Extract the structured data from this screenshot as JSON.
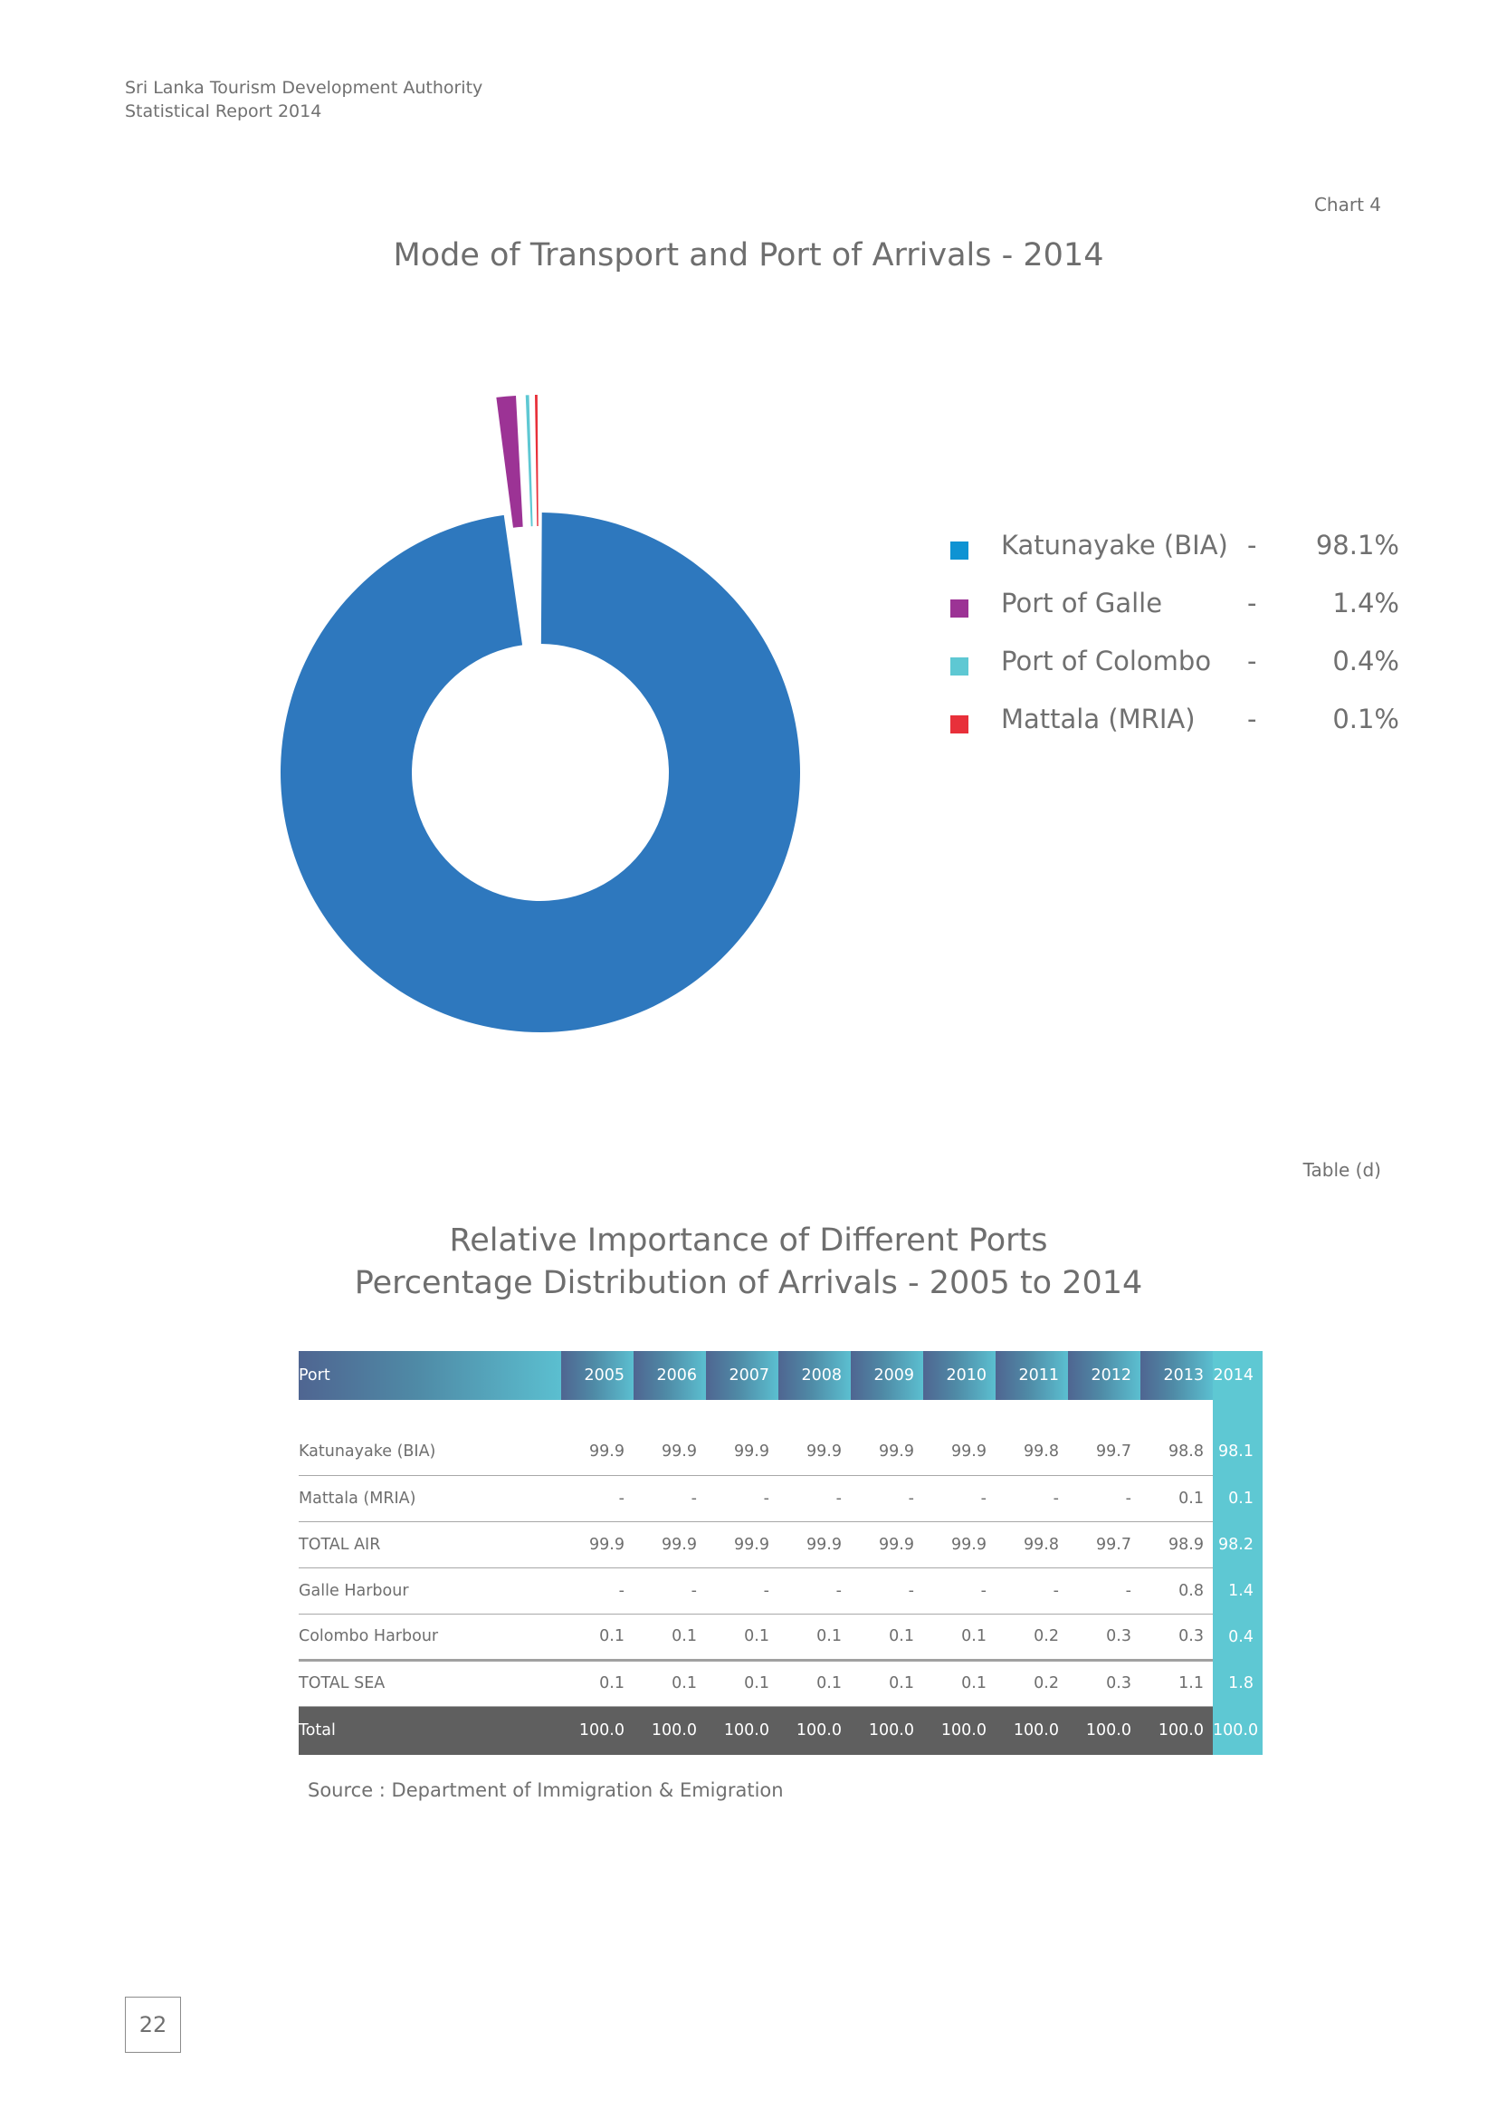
{
  "header": {
    "org": "Sri Lanka Tourism Development Authority",
    "report": "Statistical Report 2014"
  },
  "chart_label": "Chart 4",
  "chart_data": {
    "type": "pie",
    "style": "donut",
    "title": "Mode of Transport and Port of Arrivals - 2014",
    "categories": [
      "Katunayake (BIA)",
      "Port of Galle",
      "Port of Colombo",
      "Mattala (MRIA)"
    ],
    "values": [
      98.1,
      1.4,
      0.4,
      0.1
    ],
    "value_labels": [
      "98.1%",
      "1.4%",
      "0.4%",
      "0.1%"
    ],
    "colors": [
      "#2e78be",
      "#9c3395",
      "#5ec8d3",
      "#e8303a"
    ],
    "legend_colors": [
      "#0e93d3",
      "#9c3395",
      "#5ec8d3",
      "#e8303a"
    ],
    "legend_position": "right",
    "exploded": [
      "Port of Galle",
      "Port of Colombo",
      "Mattala (MRIA)"
    ]
  },
  "legend_separator": "-",
  "table": {
    "label": "Table (d)",
    "title_line1": "Relative Importance of Different Ports",
    "title_line2": "Percentage Distribution of Arrivals - 2005 to 2014",
    "headers": [
      "Port",
      "2005",
      "2006",
      "2007",
      "2008",
      "2009",
      "2010",
      "2011",
      "2012",
      "2013",
      "2014"
    ],
    "rows": [
      [
        "Katunayake (BIA)",
        "99.9",
        "99.9",
        "99.9",
        "99.9",
        "99.9",
        "99.9",
        "99.8",
        "99.7",
        "98.8",
        "98.1"
      ],
      [
        "Mattala (MRIA)",
        "-",
        "-",
        "-",
        "-",
        "-",
        "-",
        "-",
        "-",
        "0.1",
        "0.1"
      ],
      [
        "TOTAL AIR",
        "99.9",
        "99.9",
        "99.9",
        "99.9",
        "99.9",
        "99.9",
        "99.8",
        "99.7",
        "98.9",
        "98.2"
      ],
      [
        "Galle Harbour",
        "-",
        "-",
        "-",
        "-",
        "-",
        "-",
        "-",
        "-",
        "0.8",
        "1.4"
      ],
      [
        "Colombo Harbour",
        "0.1",
        "0.1",
        "0.1",
        "0.1",
        "0.1",
        "0.1",
        "0.2",
        "0.3",
        "0.3",
        "0.4"
      ],
      [
        "TOTAL  SEA",
        "0.1",
        "0.1",
        "0.1",
        "0.1",
        "0.1",
        "0.1",
        "0.2",
        "0.3",
        "1.1",
        "1.8"
      ]
    ],
    "total": [
      "Total",
      "100.0",
      "100.0",
      "100.0",
      "100.0",
      "100.0",
      "100.0",
      "100.0",
      "100.0",
      "100.0",
      "100.0"
    ]
  },
  "source": "Source : Department of Immigration & Emigration",
  "page_number": "22"
}
